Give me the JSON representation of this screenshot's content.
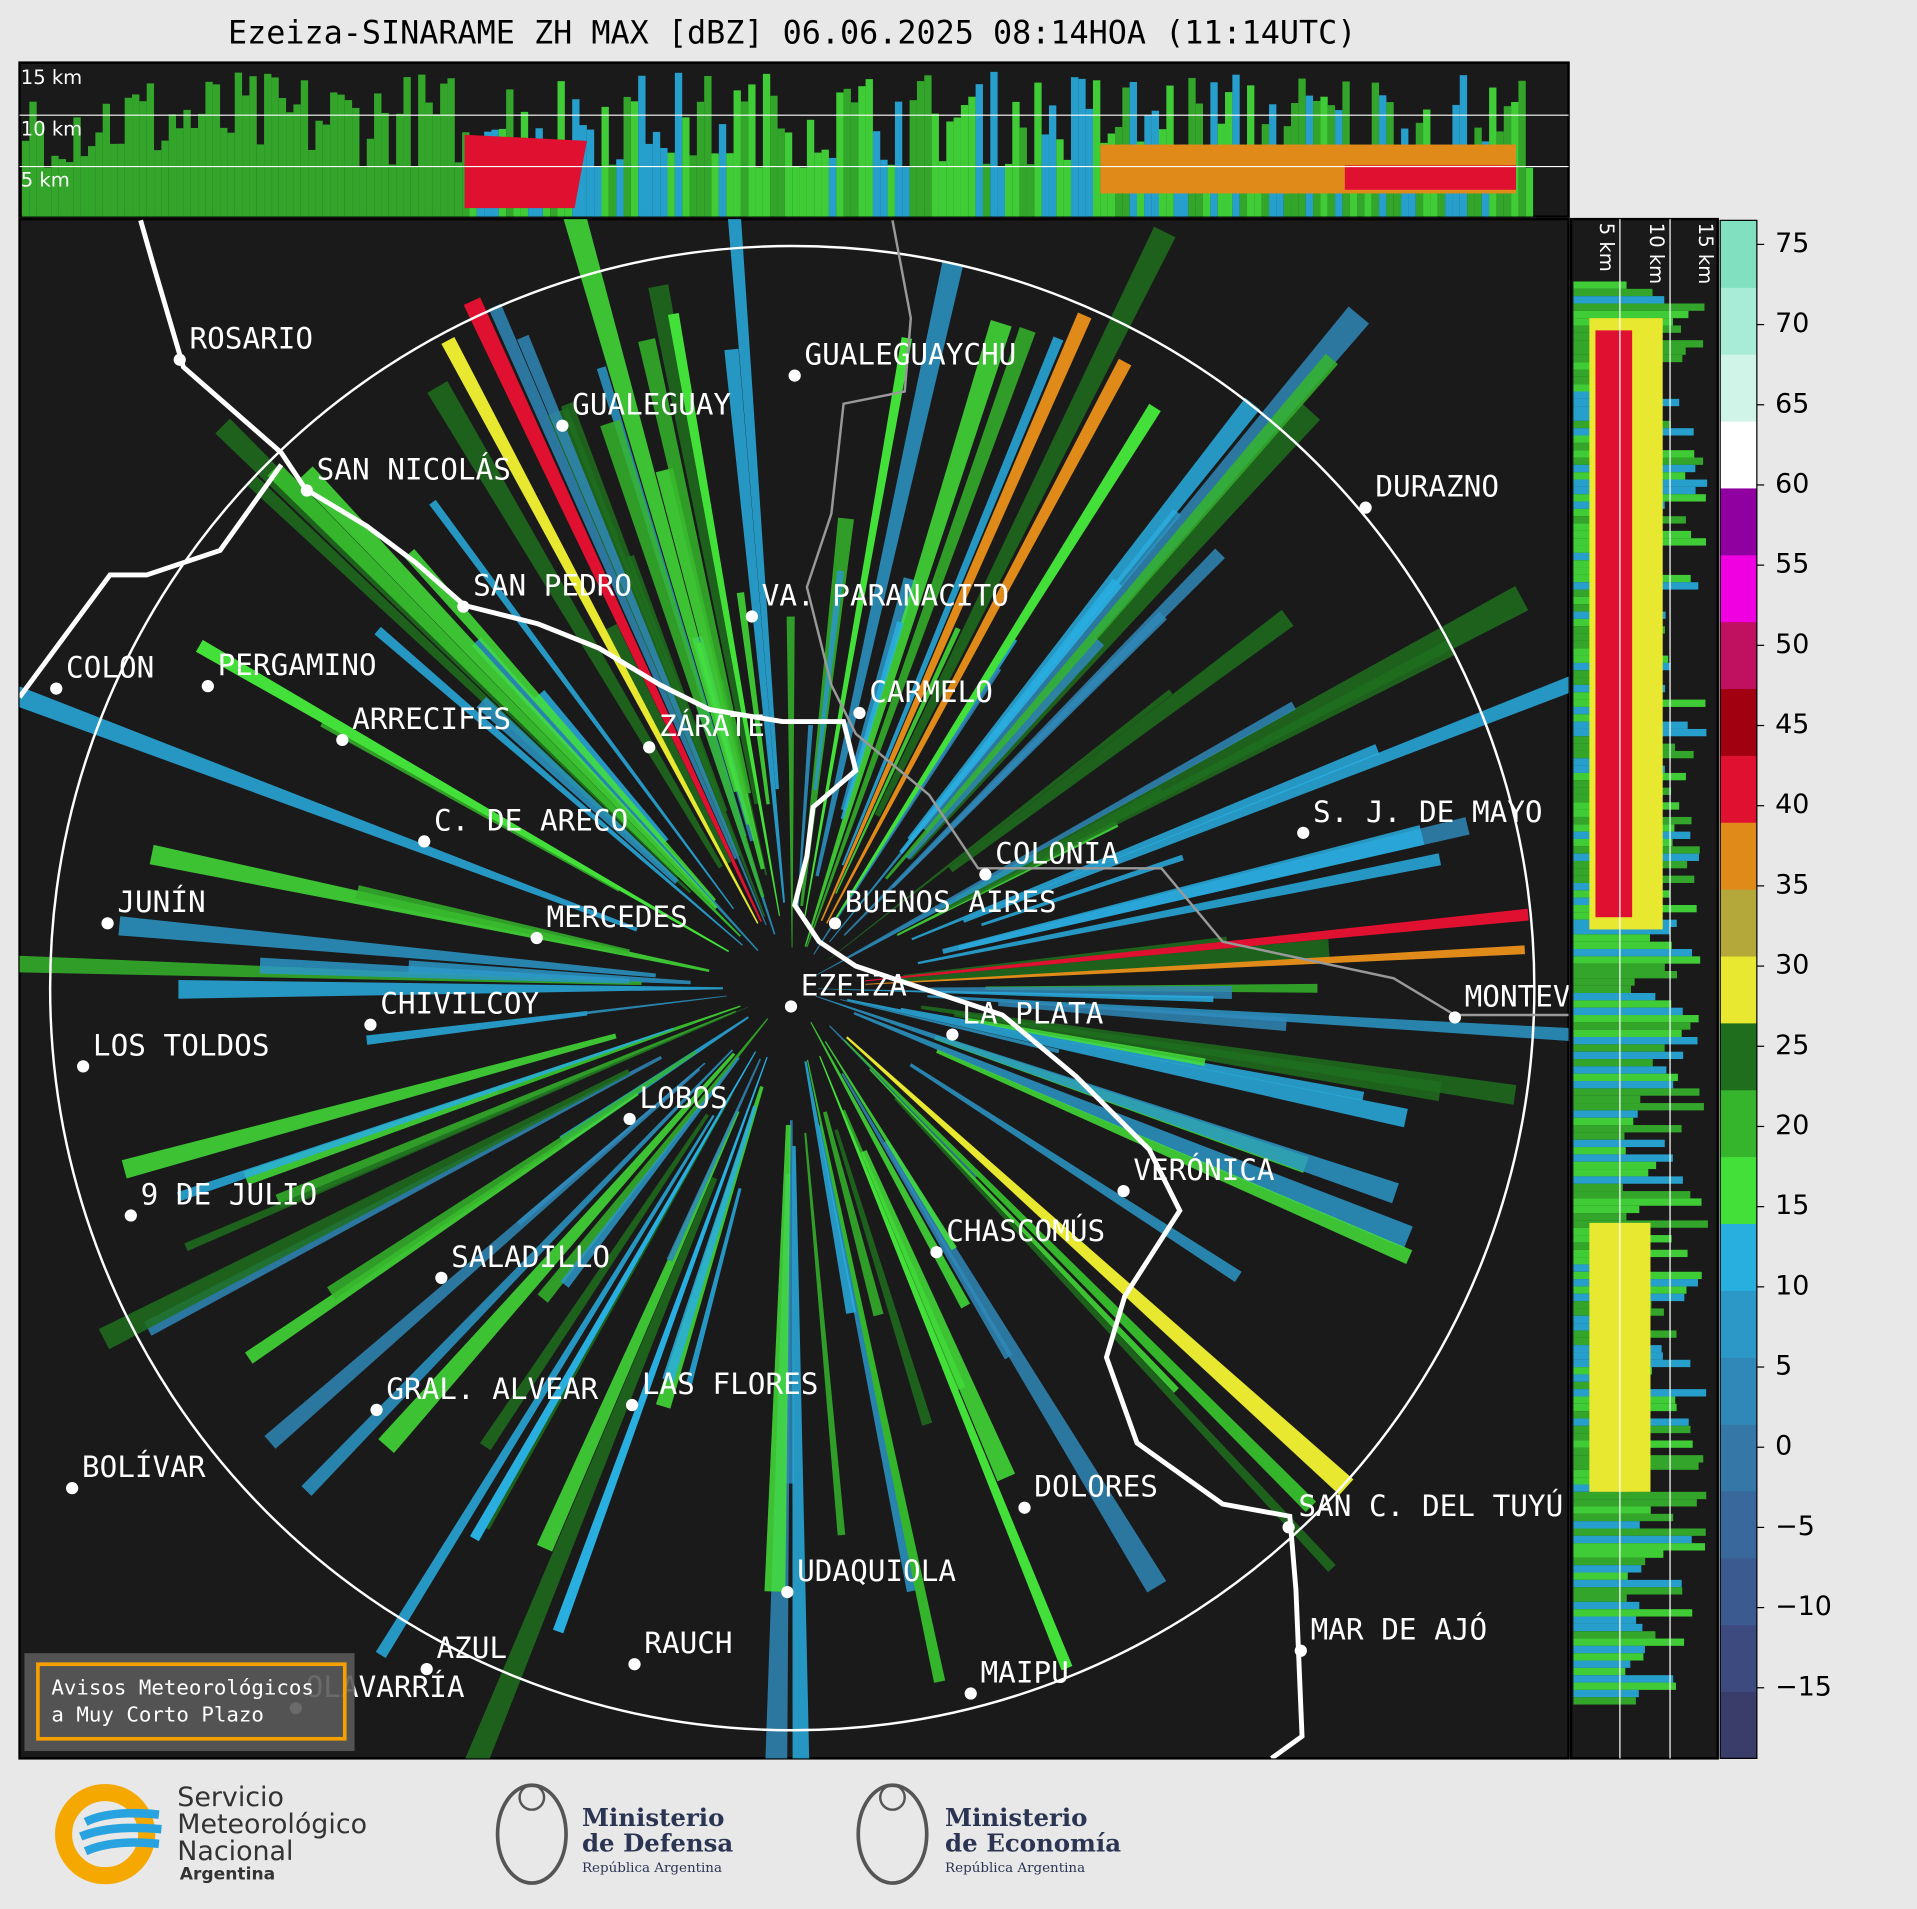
{
  "title": "Ezeiza-SINARAME ZH MAX [dBZ] 06.06.2025 08:14HOA (11:14UTC)",
  "top_panel": {
    "height_labels": [
      "15 km",
      "10 km",
      "5 km"
    ]
  },
  "side_panel": {
    "height_labels": [
      "5 km",
      "10 km",
      "15 km"
    ]
  },
  "map": {
    "cities": [
      "ROSARIO",
      "GUALEGUAYCHU",
      "GUALEGUAY",
      "SAN NICOLÁS",
      "DURAZNO",
      "SAN PEDRO",
      "VA. PARANACITO",
      "COLON",
      "PERGAMINO",
      "CARMELO",
      "ARRECIFES",
      "ZÁRATE",
      "S. J. DE MAYO",
      "C. DE ARECO",
      "COLONIA",
      "BUENOS AIRES",
      "JUNÍN",
      "MERCEDES",
      "MONTEVIDEO",
      "EZEIZA",
      "CHIVILCOY",
      "LA PLATA",
      "LOS TOLDOS",
      "LOBOS",
      "VERÓNICA",
      "9 DE JULIO",
      "CHASCOMÚS",
      "SALADILLO",
      "GRAL. ALVEAR",
      "LAS FLORES",
      "BOLÍVAR",
      "DOLORES",
      "SAN C. DEL TUYÚ",
      "UDAQUIOLA",
      "MAR DE AJÓ",
      "RAUCH",
      "AZUL",
      "OLAVARRÍA",
      "MAIPU"
    ]
  },
  "colorbar": {
    "lim": [
      -19.4,
      76.5
    ],
    "ticks": [
      75,
      70,
      65,
      60,
      55,
      50,
      45,
      40,
      35,
      30,
      25,
      20,
      15,
      10,
      5,
      0,
      {
        "value": -5,
        "label": "−5"
      },
      {
        "value": -10,
        "label": "−10"
      },
      {
        "value": -15,
        "label": "−15"
      }
    ],
    "colors": [
      "#3a3d6a",
      "#3c4a80",
      "#3b5a90",
      "#39699c",
      "#3578a8",
      "#3088b8",
      "#2c98c8",
      "#29aee0",
      "#44e03a",
      "#35b52c",
      "#1e6e1e",
      "#e8e830",
      "#b4a83a",
      "#e08a1a",
      "#e01030",
      "#a00010",
      "#c01060",
      "#f000e0",
      "#9000a0",
      "#ffffff",
      "#d0f4e8",
      "#a8ecd8",
      "#80e0c0"
    ]
  },
  "legend_box": {
    "lines": [
      "Avisos Meteorológicos",
      "a Muy Corto Plazo"
    ]
  },
  "footer": {
    "smn": [
      "Servicio",
      "Meteorológico",
      "Nacional",
      "Argentina"
    ],
    "defensa": [
      "Ministerio",
      "de Defensa",
      "República Argentina"
    ],
    "economia": [
      "Ministerio",
      "de Economía",
      "República Argentina"
    ]
  }
}
